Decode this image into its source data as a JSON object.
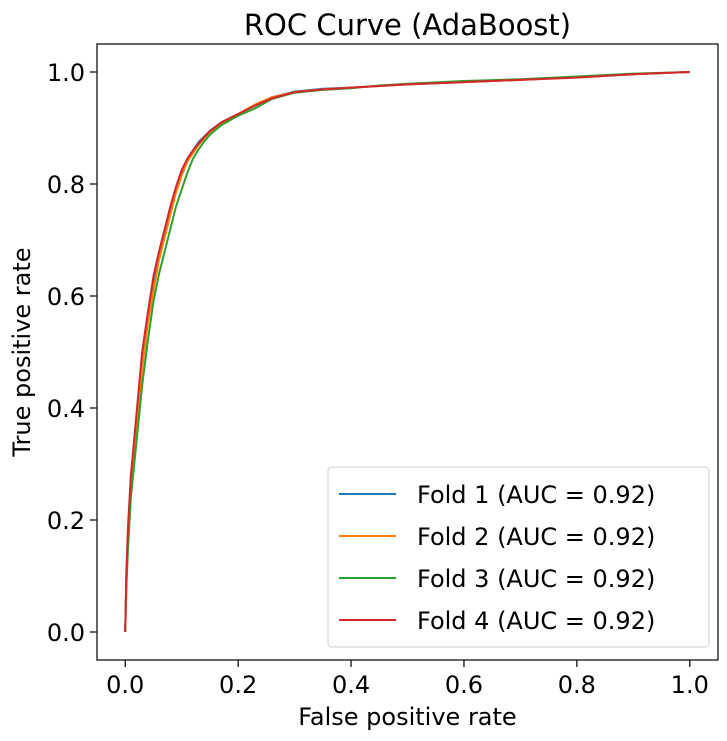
{
  "chart_data": {
    "type": "line",
    "title": "ROC Curve (AdaBoost)",
    "xlabel": "False positive rate",
    "ylabel": "True positive rate",
    "xlim": [
      -0.05,
      1.05
    ],
    "ylim": [
      -0.05,
      1.05
    ],
    "xticks": [
      0.0,
      0.2,
      0.4,
      0.6,
      0.8,
      1.0
    ],
    "yticks": [
      0.0,
      0.2,
      0.4,
      0.6,
      0.8,
      1.0
    ],
    "xtick_labels": [
      "0.0",
      "0.2",
      "0.4",
      "0.6",
      "0.8",
      "1.0"
    ],
    "ytick_labels": [
      "0.0",
      "0.2",
      "0.4",
      "0.6",
      "0.8",
      "1.0"
    ],
    "grid": false,
    "legend_position": "lower-right",
    "series": [
      {
        "name": "Fold 1 (AUC = 0.92)",
        "color": "#1f77b4",
        "x": [
          0.0,
          0.002,
          0.005,
          0.01,
          0.02,
          0.03,
          0.04,
          0.05,
          0.06,
          0.07,
          0.08,
          0.09,
          0.1,
          0.11,
          0.12,
          0.13,
          0.14,
          0.15,
          0.17,
          0.2,
          0.23,
          0.26,
          0.3,
          0.35,
          0.4,
          0.45,
          0.5,
          0.6,
          0.7,
          0.8,
          0.9,
          1.0
        ],
        "y": [
          0.0,
          0.1,
          0.18,
          0.27,
          0.38,
          0.48,
          0.56,
          0.62,
          0.67,
          0.71,
          0.75,
          0.79,
          0.82,
          0.845,
          0.86,
          0.875,
          0.885,
          0.895,
          0.91,
          0.925,
          0.94,
          0.955,
          0.965,
          0.97,
          0.972,
          0.975,
          0.978,
          0.982,
          0.986,
          0.991,
          0.996,
          1.0
        ]
      },
      {
        "name": "Fold 2 (AUC = 0.92)",
        "color": "#ff7f0e",
        "x": [
          0.0,
          0.002,
          0.005,
          0.01,
          0.02,
          0.03,
          0.04,
          0.05,
          0.06,
          0.07,
          0.08,
          0.09,
          0.1,
          0.11,
          0.12,
          0.13,
          0.14,
          0.15,
          0.17,
          0.2,
          0.23,
          0.26,
          0.3,
          0.35,
          0.4,
          0.45,
          0.5,
          0.6,
          0.7,
          0.8,
          0.9,
          1.0
        ],
        "y": [
          0.0,
          0.09,
          0.17,
          0.26,
          0.37,
          0.47,
          0.55,
          0.61,
          0.665,
          0.705,
          0.745,
          0.785,
          0.815,
          0.84,
          0.855,
          0.87,
          0.882,
          0.893,
          0.908,
          0.925,
          0.942,
          0.955,
          0.964,
          0.969,
          0.972,
          0.975,
          0.978,
          0.982,
          0.986,
          0.991,
          0.996,
          1.0
        ]
      },
      {
        "name": "Fold 3 (AUC = 0.92)",
        "color": "#2ca02c",
        "x": [
          0.0,
          0.002,
          0.005,
          0.01,
          0.02,
          0.03,
          0.04,
          0.05,
          0.06,
          0.07,
          0.08,
          0.09,
          0.1,
          0.11,
          0.12,
          0.13,
          0.14,
          0.15,
          0.17,
          0.2,
          0.23,
          0.26,
          0.3,
          0.35,
          0.4,
          0.45,
          0.5,
          0.6,
          0.7,
          0.8,
          0.9,
          1.0
        ],
        "y": [
          0.0,
          0.08,
          0.15,
          0.24,
          0.34,
          0.44,
          0.52,
          0.59,
          0.64,
          0.68,
          0.72,
          0.76,
          0.79,
          0.82,
          0.845,
          0.862,
          0.876,
          0.888,
          0.905,
          0.922,
          0.935,
          0.952,
          0.963,
          0.968,
          0.971,
          0.976,
          0.979,
          0.984,
          0.987,
          0.992,
          0.997,
          1.0
        ]
      },
      {
        "name": "Fold 4 (AUC = 0.92)",
        "color": "#d62728",
        "x": [
          0.0,
          0.002,
          0.005,
          0.01,
          0.02,
          0.03,
          0.04,
          0.05,
          0.06,
          0.07,
          0.08,
          0.09,
          0.1,
          0.11,
          0.12,
          0.13,
          0.14,
          0.15,
          0.17,
          0.2,
          0.23,
          0.26,
          0.3,
          0.35,
          0.4,
          0.45,
          0.5,
          0.6,
          0.7,
          0.8,
          0.9,
          1.0
        ],
        "y": [
          0.0,
          0.11,
          0.19,
          0.28,
          0.39,
          0.5,
          0.57,
          0.635,
          0.68,
          0.72,
          0.76,
          0.795,
          0.825,
          0.845,
          0.86,
          0.872,
          0.884,
          0.894,
          0.91,
          0.925,
          0.94,
          0.953,
          0.964,
          0.969,
          0.972,
          0.975,
          0.978,
          0.982,
          0.986,
          0.99,
          0.996,
          1.0
        ]
      }
    ]
  }
}
